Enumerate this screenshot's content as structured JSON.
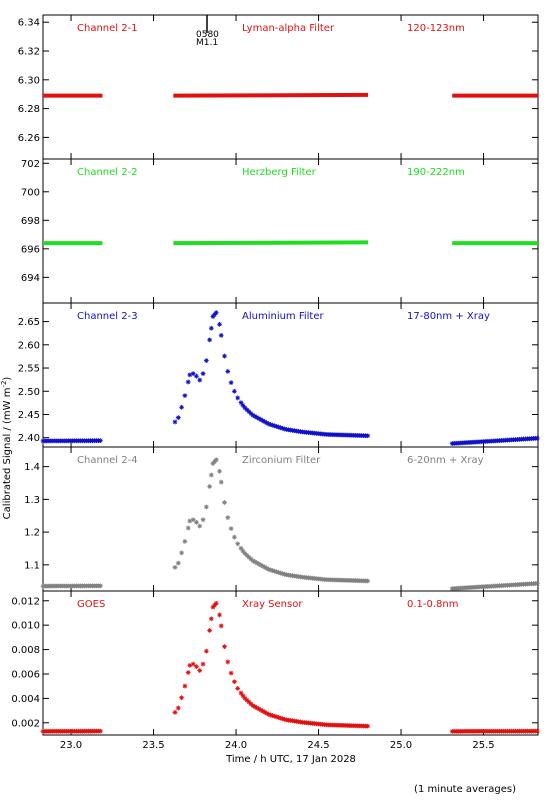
{
  "figure": {
    "ylabel": "Calibrated Signal / (mW m",
    "ylabel_sup": "-2",
    "ylabel_tail": ")",
    "xlabel": "Time / h UTC, 17 Jan 2028",
    "footnote": "(1 minute averages)",
    "event_label_1": "0580",
    "event_label_2": "M1.1"
  },
  "colors": {
    "red": "#e01010",
    "green": "#20dd20",
    "blue": "#1010c8",
    "gray": "#808080",
    "axis": "#000000"
  },
  "chart_data": [
    {
      "type": "scatter",
      "channel": "Channel 2-1",
      "filter": "Lyman-alpha Filter",
      "band": "120-123nm",
      "color": "red",
      "xlim": [
        22.83,
        25.83
      ],
      "ylim": [
        6.245,
        6.345
      ],
      "yticks": [
        6.26,
        6.28,
        6.3,
        6.32,
        6.34
      ],
      "ytick_labels": [
        "6.26",
        "6.28",
        "6.30",
        "6.32",
        "6.34"
      ],
      "segments": [
        {
          "x": [
            22.83,
            23.19
          ],
          "y": [
            6.289,
            6.289
          ]
        },
        {
          "x": [
            23.62,
            24.8
          ],
          "y": [
            6.289,
            6.2895
          ]
        },
        {
          "x": [
            25.31,
            25.83
          ],
          "y": [
            6.289,
            6.289
          ]
        }
      ]
    },
    {
      "type": "scatter",
      "channel": "Channel 2-2",
      "filter": "Herzberg Filter",
      "band": "190-222nm",
      "color": "green",
      "xlim": [
        22.83,
        25.83
      ],
      "ylim": [
        692.2,
        702.3
      ],
      "yticks": [
        694,
        696,
        698,
        700,
        702
      ],
      "ytick_labels": [
        "694",
        "696",
        "698",
        "700",
        "702"
      ],
      "segments": [
        {
          "x": [
            22.83,
            23.19
          ],
          "y": [
            696.4,
            696.4
          ]
        },
        {
          "x": [
            23.62,
            24.8
          ],
          "y": [
            696.4,
            696.45
          ]
        },
        {
          "x": [
            25.31,
            25.83
          ],
          "y": [
            696.4,
            696.4
          ]
        }
      ]
    },
    {
      "type": "scatter",
      "channel": "Channel 2-3",
      "filter": "Aluminium Filter",
      "band": "17-80nm + Xray",
      "color": "blue",
      "xlim": [
        22.83,
        25.83
      ],
      "ylim": [
        2.38,
        2.69
      ],
      "yticks": [
        2.4,
        2.45,
        2.5,
        2.55,
        2.6,
        2.65
      ],
      "ytick_labels": [
        "2.40",
        "2.45",
        "2.50",
        "2.55",
        "2.60",
        "2.65"
      ],
      "base_level": 2.393,
      "peak_level": 2.672
    },
    {
      "type": "scatter",
      "channel": "Channel 2-4",
      "filter": "Zirconium Filter",
      "band": "6-20nm + Xray",
      "color": "gray",
      "xlim": [
        22.83,
        25.83
      ],
      "ylim": [
        1.02,
        1.46
      ],
      "yticks": [
        1.1,
        1.2,
        1.3,
        1.4
      ],
      "ytick_labels": [
        "1.1",
        "1.2",
        "1.3",
        "1.4"
      ],
      "base_level": 1.035,
      "peak_level": 1.425
    },
    {
      "type": "scatter",
      "channel": "GOES",
      "filter": "Xray Sensor",
      "band": "0.1-0.8nm",
      "color": "red",
      "xlim": [
        22.83,
        25.83
      ],
      "ylim": [
        0.001,
        0.0128
      ],
      "yticks": [
        0.002,
        0.004,
        0.006,
        0.008,
        0.01,
        0.012
      ],
      "ytick_labels": [
        "0.002",
        "0.004",
        "0.006",
        "0.008",
        "0.010",
        "0.012"
      ],
      "xticks": [
        23.0,
        23.5,
        24.0,
        24.5,
        25.0,
        25.5
      ],
      "xtick_labels": [
        "23.0",
        "23.5",
        "24.0",
        "24.5",
        "25.0",
        "25.5"
      ],
      "base_level": 0.0013,
      "peak_level": 0.0119
    }
  ]
}
